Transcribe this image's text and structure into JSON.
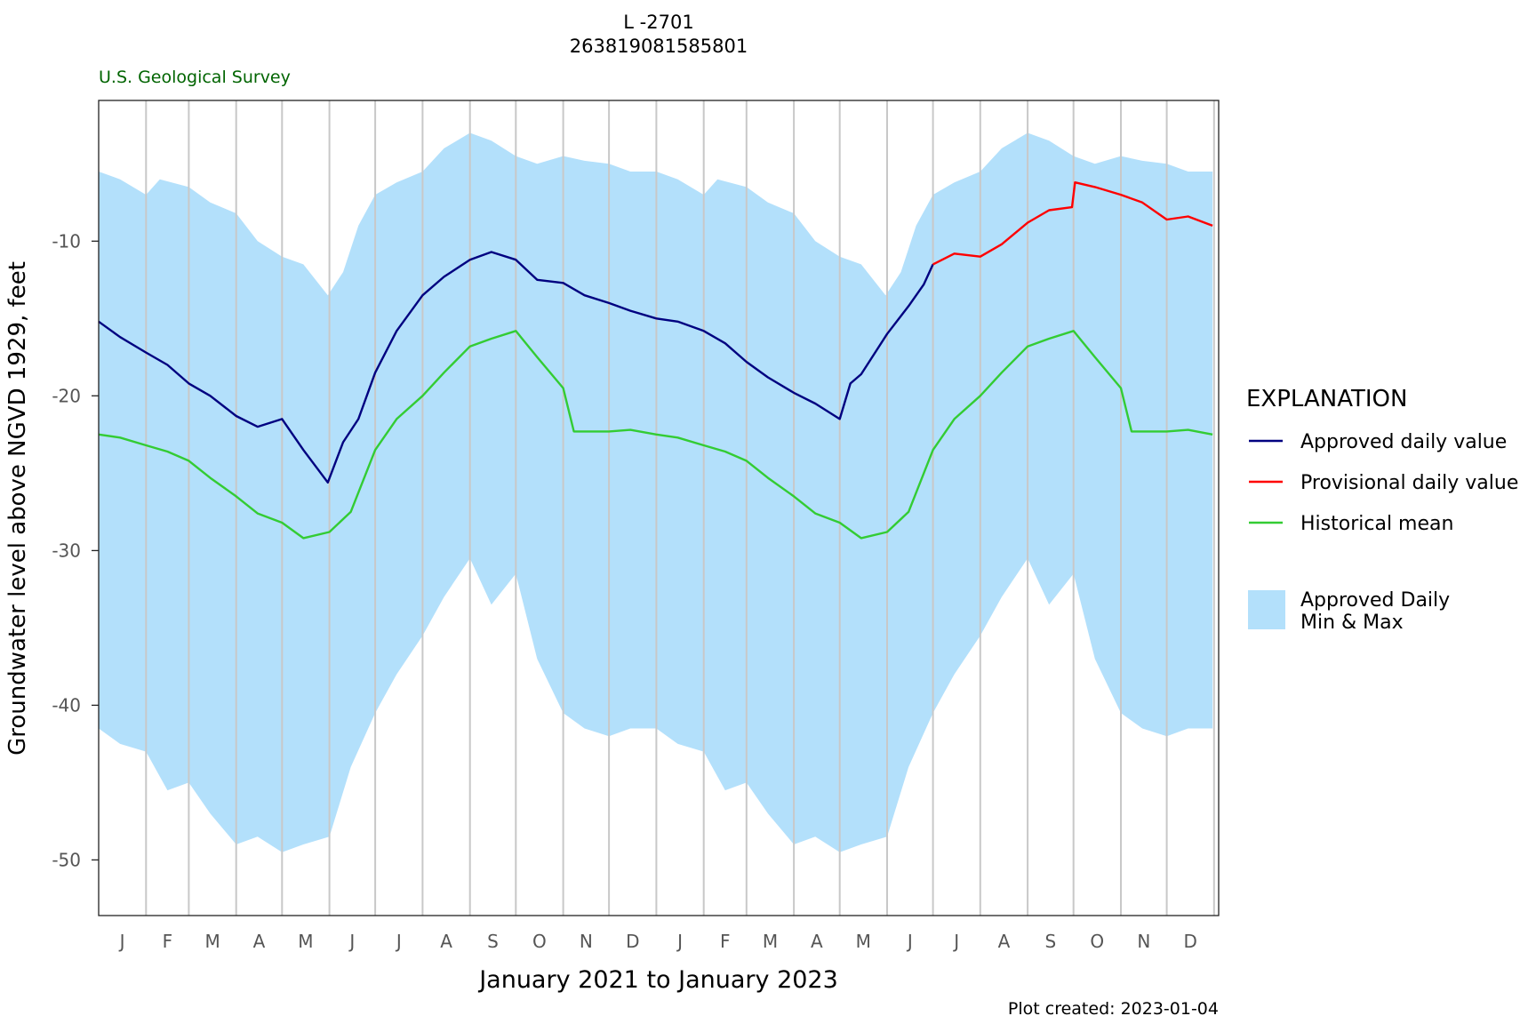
{
  "chart_data": {
    "type": "area",
    "title": "L -2701",
    "subtitle": "263819081585801",
    "agency": "U.S. Geological Survey",
    "xlabel": "January 2021 to January 2023",
    "ylabel": "Groundwater level above NGVD 1929, feet",
    "footer": "Plot created: 2023-01-04",
    "ylim": [
      -53.6,
      -0.9
    ],
    "yticks": [
      -10,
      -20,
      -30,
      -40,
      -50
    ],
    "xlim": [
      "2021-01-01",
      "2023-01-04"
    ],
    "x_tick_labels": [
      "J",
      "F",
      "M",
      "A",
      "M",
      "J",
      "J",
      "A",
      "S",
      "O",
      "N",
      "D",
      "J",
      "F",
      "M",
      "A",
      "M",
      "J",
      "J",
      "A",
      "S",
      "O",
      "N",
      "D"
    ],
    "month_starts": [
      "2021-01-01",
      "2021-02-01",
      "2021-03-01",
      "2021-04-01",
      "2021-05-01",
      "2021-06-01",
      "2021-07-01",
      "2021-08-01",
      "2021-09-01",
      "2021-10-01",
      "2021-11-01",
      "2021-12-01",
      "2022-01-01",
      "2022-02-01",
      "2022-03-01",
      "2022-04-01",
      "2022-05-01",
      "2022-06-01",
      "2022-07-01",
      "2022-08-01",
      "2022-09-01",
      "2022-10-01",
      "2022-11-01",
      "2022-12-01",
      "2023-01-01"
    ],
    "grid": "vertical month lines",
    "legend": {
      "title": "EXPLANATION",
      "placement": "right",
      "items": [
        {
          "label": "Approved daily value",
          "color": "#000080",
          "kind": "line"
        },
        {
          "label": "Provisional daily value",
          "color": "#ff0000",
          "kind": "line"
        },
        {
          "label": "Historical mean",
          "color": "#33cc33",
          "kind": "line"
        },
        {
          "label": "Approved Daily\nMin & Max",
          "color": "#b3e0fb",
          "kind": "area"
        }
      ]
    },
    "series": [
      {
        "name": "Approved daily value",
        "color": "#000080",
        "points": [
          [
            "2021-01-01",
            -15.2
          ],
          [
            "2021-01-15",
            -16.2
          ],
          [
            "2021-02-01",
            -17.2
          ],
          [
            "2021-02-15",
            -18.0
          ],
          [
            "2021-03-01",
            -19.2
          ],
          [
            "2021-03-15",
            -20.0
          ],
          [
            "2021-04-01",
            -21.3
          ],
          [
            "2021-04-15",
            -22.0
          ],
          [
            "2021-05-01",
            -21.5
          ],
          [
            "2021-05-15",
            -23.5
          ],
          [
            "2021-05-31",
            -25.6
          ],
          [
            "2021-06-10",
            -23.0
          ],
          [
            "2021-06-20",
            -21.5
          ],
          [
            "2021-07-01",
            -18.5
          ],
          [
            "2021-07-15",
            -15.8
          ],
          [
            "2021-08-01",
            -13.5
          ],
          [
            "2021-08-15",
            -12.3
          ],
          [
            "2021-09-01",
            -11.2
          ],
          [
            "2021-09-15",
            -10.7
          ],
          [
            "2021-10-01",
            -11.2
          ],
          [
            "2021-10-15",
            -12.5
          ],
          [
            "2021-11-01",
            -12.7
          ],
          [
            "2021-11-15",
            -13.5
          ],
          [
            "2021-12-01",
            -14.0
          ],
          [
            "2021-12-15",
            -14.5
          ],
          [
            "2022-01-01",
            -15.0
          ],
          [
            "2022-01-15",
            -15.2
          ],
          [
            "2022-02-01",
            -15.8
          ],
          [
            "2022-02-15",
            -16.6
          ],
          [
            "2022-03-01",
            -17.8
          ],
          [
            "2022-03-15",
            -18.8
          ],
          [
            "2022-04-01",
            -19.8
          ],
          [
            "2022-04-15",
            -20.5
          ],
          [
            "2022-05-01",
            -21.5
          ],
          [
            "2022-05-08",
            -19.2
          ],
          [
            "2022-05-15",
            -18.6
          ],
          [
            "2022-06-01",
            -16.0
          ],
          [
            "2022-06-15",
            -14.2
          ],
          [
            "2022-06-25",
            -12.8
          ],
          [
            "2022-07-01",
            -11.5
          ]
        ]
      },
      {
        "name": "Provisional daily value",
        "color": "#ff0000",
        "points": [
          [
            "2022-07-01",
            -11.5
          ],
          [
            "2022-07-15",
            -10.8
          ],
          [
            "2022-08-01",
            -11.0
          ],
          [
            "2022-08-15",
            -10.2
          ],
          [
            "2022-09-01",
            -8.8
          ],
          [
            "2022-09-15",
            -8.0
          ],
          [
            "2022-09-30",
            -7.8
          ],
          [
            "2022-10-02",
            -6.2
          ],
          [
            "2022-10-15",
            -6.5
          ],
          [
            "2022-11-01",
            -7.0
          ],
          [
            "2022-11-15",
            -7.5
          ],
          [
            "2022-12-01",
            -8.6
          ],
          [
            "2022-12-15",
            -8.4
          ],
          [
            "2022-12-31",
            -9.0
          ]
        ]
      },
      {
        "name": "Historical mean",
        "color": "#33cc33",
        "points": [
          [
            "2021-01-01",
            -22.5
          ],
          [
            "2021-01-15",
            -22.7
          ],
          [
            "2021-02-01",
            -23.2
          ],
          [
            "2021-02-15",
            -23.6
          ],
          [
            "2021-03-01",
            -24.2
          ],
          [
            "2021-03-15",
            -25.3
          ],
          [
            "2021-04-01",
            -26.5
          ],
          [
            "2021-04-15",
            -27.6
          ],
          [
            "2021-05-01",
            -28.2
          ],
          [
            "2021-05-15",
            -29.2
          ],
          [
            "2021-06-01",
            -28.8
          ],
          [
            "2021-06-15",
            -27.5
          ],
          [
            "2021-07-01",
            -23.5
          ],
          [
            "2021-07-15",
            -21.5
          ],
          [
            "2021-08-01",
            -20.0
          ],
          [
            "2021-08-15",
            -18.5
          ],
          [
            "2021-09-01",
            -16.8
          ],
          [
            "2021-09-15",
            -16.3
          ],
          [
            "2021-10-01",
            -15.8
          ],
          [
            "2021-10-15",
            -17.5
          ],
          [
            "2021-11-01",
            -19.5
          ],
          [
            "2021-11-08",
            -22.3
          ],
          [
            "2021-11-15",
            -22.3
          ],
          [
            "2021-12-01",
            -22.3
          ],
          [
            "2021-12-15",
            -22.2
          ],
          [
            "2022-01-01",
            -22.5
          ],
          [
            "2022-01-15",
            -22.7
          ],
          [
            "2022-02-01",
            -23.2
          ],
          [
            "2022-02-15",
            -23.6
          ],
          [
            "2022-03-01",
            -24.2
          ],
          [
            "2022-03-15",
            -25.3
          ],
          [
            "2022-04-01",
            -26.5
          ],
          [
            "2022-04-15",
            -27.6
          ],
          [
            "2022-05-01",
            -28.2
          ],
          [
            "2022-05-15",
            -29.2
          ],
          [
            "2022-06-01",
            -28.8
          ],
          [
            "2022-06-15",
            -27.5
          ],
          [
            "2022-07-01",
            -23.5
          ],
          [
            "2022-07-15",
            -21.5
          ],
          [
            "2022-08-01",
            -20.0
          ],
          [
            "2022-08-15",
            -18.5
          ],
          [
            "2022-09-01",
            -16.8
          ],
          [
            "2022-09-15",
            -16.3
          ],
          [
            "2022-10-01",
            -15.8
          ],
          [
            "2022-10-15",
            -17.5
          ],
          [
            "2022-11-01",
            -19.5
          ],
          [
            "2022-11-08",
            -22.3
          ],
          [
            "2022-11-15",
            -22.3
          ],
          [
            "2022-12-01",
            -22.3
          ],
          [
            "2022-12-15",
            -22.2
          ],
          [
            "2022-12-31",
            -22.5
          ]
        ]
      },
      {
        "name": "Approved Daily Min & Max",
        "color": "#b3e0fb",
        "max": [
          [
            "2021-01-01",
            -5.5
          ],
          [
            "2021-01-15",
            -6.0
          ],
          [
            "2021-02-01",
            -7.0
          ],
          [
            "2021-02-10",
            -6.0
          ],
          [
            "2021-03-01",
            -6.5
          ],
          [
            "2021-03-15",
            -7.5
          ],
          [
            "2021-04-01",
            -8.2
          ],
          [
            "2021-04-15",
            -10.0
          ],
          [
            "2021-05-01",
            -11.0
          ],
          [
            "2021-05-15",
            -11.5
          ],
          [
            "2021-05-31",
            -13.5
          ],
          [
            "2021-06-10",
            -12.0
          ],
          [
            "2021-06-20",
            -9.0
          ],
          [
            "2021-07-01",
            -7.0
          ],
          [
            "2021-07-15",
            -6.2
          ],
          [
            "2021-08-01",
            -5.5
          ],
          [
            "2021-08-15",
            -4.0
          ],
          [
            "2021-09-01",
            -3.0
          ],
          [
            "2021-09-15",
            -3.5
          ],
          [
            "2021-10-01",
            -4.5
          ],
          [
            "2021-10-15",
            -5.0
          ],
          [
            "2021-11-01",
            -4.5
          ],
          [
            "2021-11-15",
            -4.8
          ],
          [
            "2021-12-01",
            -5.0
          ],
          [
            "2021-12-15",
            -5.5
          ],
          [
            "2022-01-01",
            -5.5
          ],
          [
            "2022-01-15",
            -6.0
          ],
          [
            "2022-02-01",
            -7.0
          ],
          [
            "2022-02-10",
            -6.0
          ],
          [
            "2022-03-01",
            -6.5
          ],
          [
            "2022-03-15",
            -7.5
          ],
          [
            "2022-04-01",
            -8.2
          ],
          [
            "2022-04-15",
            -10.0
          ],
          [
            "2022-05-01",
            -11.0
          ],
          [
            "2022-05-15",
            -11.5
          ],
          [
            "2022-05-31",
            -13.5
          ],
          [
            "2022-06-10",
            -12.0
          ],
          [
            "2022-06-20",
            -9.0
          ],
          [
            "2022-07-01",
            -7.0
          ],
          [
            "2022-07-15",
            -6.2
          ],
          [
            "2022-08-01",
            -5.5
          ],
          [
            "2022-08-15",
            -4.0
          ],
          [
            "2022-09-01",
            -3.0
          ],
          [
            "2022-09-15",
            -3.5
          ],
          [
            "2022-10-01",
            -4.5
          ],
          [
            "2022-10-15",
            -5.0
          ],
          [
            "2022-11-01",
            -4.5
          ],
          [
            "2022-11-15",
            -4.8
          ],
          [
            "2022-12-01",
            -5.0
          ],
          [
            "2022-12-15",
            -5.5
          ],
          [
            "2022-12-31",
            -5.5
          ]
        ],
        "min": [
          [
            "2021-01-01",
            -41.5
          ],
          [
            "2021-01-15",
            -42.5
          ],
          [
            "2021-02-01",
            -43.0
          ],
          [
            "2021-02-15",
            -45.5
          ],
          [
            "2021-03-01",
            -45.0
          ],
          [
            "2021-03-15",
            -47.0
          ],
          [
            "2021-04-01",
            -49.0
          ],
          [
            "2021-04-15",
            -48.5
          ],
          [
            "2021-05-01",
            -49.5
          ],
          [
            "2021-05-15",
            -49.0
          ],
          [
            "2021-06-01",
            -48.5
          ],
          [
            "2021-06-15",
            -44.0
          ],
          [
            "2021-07-01",
            -40.5
          ],
          [
            "2021-07-15",
            -38.0
          ],
          [
            "2021-08-01",
            -35.5
          ],
          [
            "2021-08-15",
            -33.0
          ],
          [
            "2021-09-01",
            -30.5
          ],
          [
            "2021-09-15",
            -33.5
          ],
          [
            "2021-10-01",
            -31.5
          ],
          [
            "2021-10-15",
            -37.0
          ],
          [
            "2021-11-01",
            -40.5
          ],
          [
            "2021-11-15",
            -41.5
          ],
          [
            "2021-12-01",
            -42.0
          ],
          [
            "2021-12-15",
            -41.5
          ],
          [
            "2022-01-01",
            -41.5
          ],
          [
            "2022-01-15",
            -42.5
          ],
          [
            "2022-02-01",
            -43.0
          ],
          [
            "2022-02-15",
            -45.5
          ],
          [
            "2022-03-01",
            -45.0
          ],
          [
            "2022-03-15",
            -47.0
          ],
          [
            "2022-04-01",
            -49.0
          ],
          [
            "2022-04-15",
            -48.5
          ],
          [
            "2022-05-01",
            -49.5
          ],
          [
            "2022-05-15",
            -49.0
          ],
          [
            "2022-06-01",
            -48.5
          ],
          [
            "2022-06-15",
            -44.0
          ],
          [
            "2022-07-01",
            -40.5
          ],
          [
            "2022-07-15",
            -38.0
          ],
          [
            "2022-08-01",
            -35.5
          ],
          [
            "2022-08-15",
            -33.0
          ],
          [
            "2022-09-01",
            -30.5
          ],
          [
            "2022-09-15",
            -33.5
          ],
          [
            "2022-10-01",
            -31.5
          ],
          [
            "2022-10-15",
            -37.0
          ],
          [
            "2022-11-01",
            -40.5
          ],
          [
            "2022-11-15",
            -41.5
          ],
          [
            "2022-12-01",
            -42.0
          ],
          [
            "2022-12-15",
            -41.5
          ],
          [
            "2022-12-31",
            -41.5
          ]
        ]
      }
    ]
  }
}
